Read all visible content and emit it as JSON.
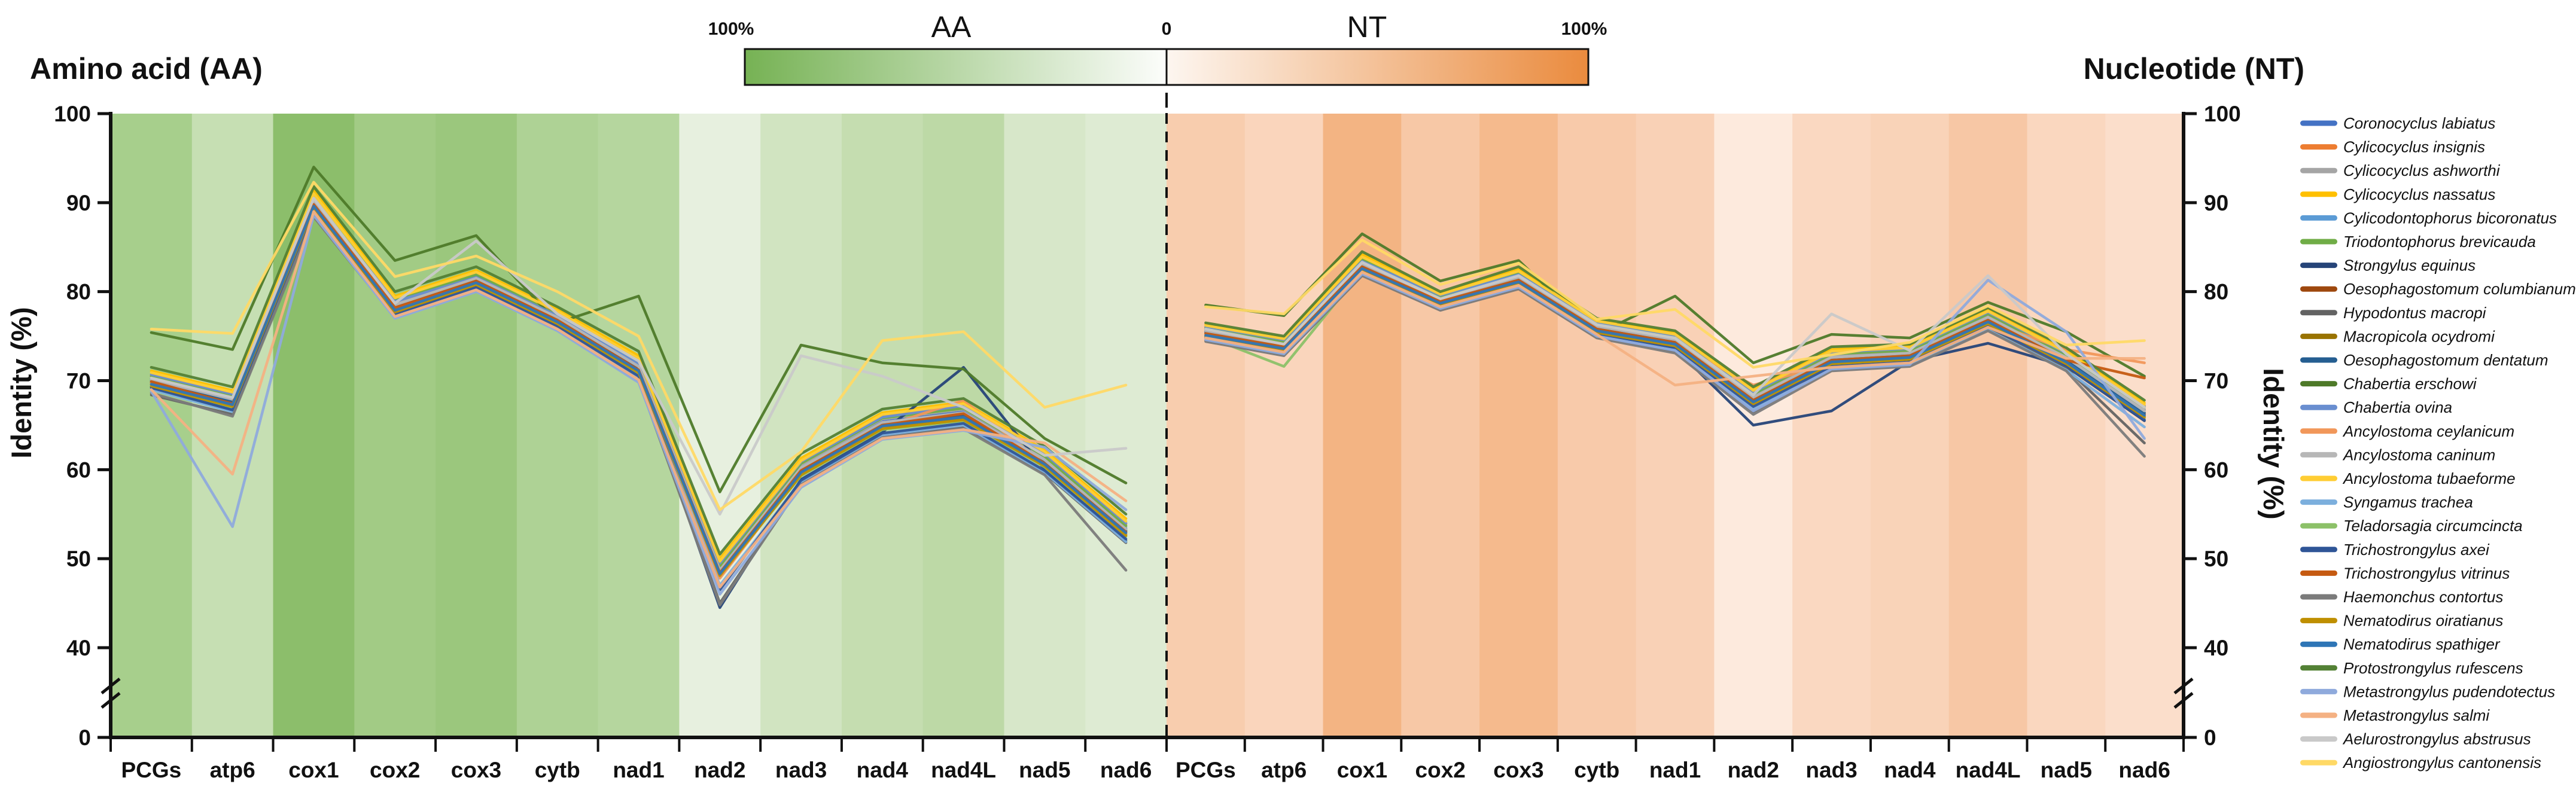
{
  "figure": {
    "aa_title": "Amino acid (AA)",
    "nt_title": "Nucleotide (NT)",
    "y_axis_label": "Identity (%)",
    "scale_legend": {
      "left_label": "100%",
      "aa_label": "AA",
      "zero_label": "0",
      "nt_label": "NT",
      "right_label": "100%",
      "green_color": "#76b254",
      "orange_color": "#ea8b3e"
    }
  },
  "chart_data": {
    "type": "line",
    "categories": [
      "PCGs",
      "atp6",
      "cox1",
      "cox2",
      "cox3",
      "cytb",
      "nad1",
      "nad2",
      "nad3",
      "nad4",
      "nad4L",
      "nad5",
      "nad6"
    ],
    "y_ticks": [
      100,
      90,
      80,
      70,
      60,
      50,
      40,
      0
    ],
    "y_axis_label": "Identity (%)",
    "axis_break": true,
    "grid": false,
    "legend_position": "right",
    "panels": {
      "aa": {
        "title": "Amino acid (AA)",
        "band_colors": [
          "#a7cf8c",
          "#c6dfb3",
          "#8cbe6b",
          "#a2cb85",
          "#9bc77d",
          "#aed295",
          "#b5d69e",
          "#e7f0df",
          "#d1e4c1",
          "#c5ddb0",
          "#bdd9a6",
          "#d7e7c9",
          "#deebd3"
        ]
      },
      "nt": {
        "title": "Nucleotide (NT)",
        "band_colors": [
          "#f8cdae",
          "#fad5bc",
          "#f3b483",
          "#f7c8a6",
          "#f5ba8d",
          "#f8caaa",
          "#f9d1b6",
          "#fdeadd",
          "#fad8c1",
          "#f9d3b8",
          "#f7c7a5",
          "#fad7bf",
          "#fbdecb"
        ]
      }
    },
    "series": [
      {
        "name": "Coronocyclus labiatus",
        "color": "#4472C4",
        "aa": [
          70.2,
          68.0,
          90.3,
          78.8,
          81.8,
          77.2,
          71.8,
          48.9,
          60.3,
          65.4,
          66.5,
          61.2,
          53.4
        ],
        "nt": [
          75.7,
          74.2,
          83.2,
          79.2,
          81.7,
          76.2,
          74.7,
          68.2,
          72.7,
          73.2,
          77.2,
          72.7,
          66.7
        ]
      },
      {
        "name": "Cylicocyclus insignis",
        "color": "#ED7D31",
        "aa": [
          70.6,
          68.4,
          90.0,
          79.2,
          81.4,
          77.6,
          72.3,
          49.4,
          60.8,
          66.0,
          67.0,
          61.7,
          53.9
        ],
        "nt": [
          76.0,
          74.5,
          83.5,
          79.5,
          82.0,
          76.5,
          75.0,
          68.6,
          73.1,
          73.5,
          77.6,
          73.0,
          67.1
        ]
      },
      {
        "name": "Cylicocyclus ashworthi",
        "color": "#A5A5A5",
        "aa": [
          70.4,
          68.2,
          90.6,
          78.6,
          82.1,
          77.0,
          72.0,
          49.0,
          60.5,
          65.7,
          66.8,
          61.4,
          53.6
        ],
        "nt": [
          75.8,
          74.3,
          83.8,
          79.3,
          82.2,
          76.3,
          74.8,
          68.3,
          72.8,
          73.3,
          77.3,
          72.8,
          66.8
        ]
      },
      {
        "name": "Cylicocyclus nassatus",
        "color": "#FFC000",
        "aa": [
          71.1,
          68.9,
          91.5,
          79.5,
          82.4,
          78.0,
          72.8,
          50.0,
          61.3,
          66.4,
          67.6,
          62.2,
          54.5
        ],
        "nt": [
          76.3,
          74.8,
          84.2,
          79.8,
          82.5,
          76.8,
          75.4,
          69.0,
          73.5,
          73.9,
          78.0,
          73.4,
          67.5
        ]
      },
      {
        "name": "Cylicodontophorus bicoronatus",
        "color": "#5B9BD5",
        "aa": [
          69.9,
          67.6,
          89.8,
          78.3,
          81.2,
          76.8,
          71.4,
          48.5,
          60.0,
          65.1,
          66.1,
          60.9,
          53.1
        ],
        "nt": [
          75.4,
          73.8,
          82.8,
          78.9,
          81.3,
          75.8,
          74.3,
          67.8,
          72.3,
          72.8,
          76.8,
          72.3,
          66.3
        ]
      },
      {
        "name": "Triodontophorus brevicauda",
        "color": "#70AD47",
        "aa": [
          70.5,
          68.3,
          90.4,
          79.0,
          81.9,
          77.4,
          72.1,
          49.2,
          60.7,
          65.8,
          66.9,
          61.5,
          53.7
        ],
        "nt": [
          75.9,
          74.4,
          83.6,
          79.4,
          82.1,
          76.4,
          74.9,
          68.5,
          73.0,
          73.4,
          77.5,
          72.9,
          67.0
        ]
      },
      {
        "name": "Strongylus equinus",
        "color": "#264478",
        "aa": [
          69.3,
          66.8,
          89.3,
          77.6,
          80.6,
          76.2,
          70.6,
          44.5,
          58.9,
          64.2,
          71.5,
          60.0,
          52.0
        ],
        "nt": [
          74.8,
          73.2,
          82.2,
          78.3,
          80.7,
          75.2,
          73.6,
          65.0,
          66.6,
          72.2,
          74.2,
          71.6,
          65.5
        ]
      },
      {
        "name": "Oesophagostomum columbianum",
        "color": "#9E480E",
        "aa": [
          69.8,
          67.5,
          89.7,
          78.2,
          81.1,
          76.7,
          71.3,
          48.3,
          59.8,
          65.0,
          66.0,
          60.8,
          53.0
        ],
        "nt": [
          75.3,
          73.7,
          82.7,
          78.8,
          81.2,
          75.7,
          74.2,
          67.7,
          72.2,
          72.7,
          76.7,
          72.2,
          66.2
        ]
      },
      {
        "name": "Hypodontus macropi",
        "color": "#636363",
        "aa": [
          68.4,
          66.2,
          88.8,
          77.3,
          80.3,
          75.9,
          70.3,
          45.0,
          58.5,
          63.8,
          64.8,
          59.6,
          51.8
        ],
        "nt": [
          74.5,
          72.9,
          81.9,
          78.0,
          80.4,
          74.9,
          73.3,
          66.5,
          71.4,
          71.9,
          75.9,
          71.4,
          63.0
        ]
      },
      {
        "name": "Macropicola ocydromi",
        "color": "#997300",
        "aa": [
          69.6,
          67.3,
          89.5,
          78.0,
          80.9,
          76.5,
          71.0,
          48.0,
          59.5,
          64.7,
          65.8,
          60.5,
          52.7
        ],
        "nt": [
          75.1,
          73.5,
          82.5,
          78.6,
          81.0,
          75.5,
          74.0,
          67.5,
          72.0,
          72.5,
          76.5,
          72.0,
          66.0
        ]
      },
      {
        "name": "Oesophagostomum dentatum",
        "color": "#255E91",
        "aa": [
          70.0,
          67.7,
          89.9,
          78.4,
          81.3,
          76.9,
          71.5,
          48.6,
          60.1,
          65.2,
          66.2,
          61.0,
          53.2
        ],
        "nt": [
          75.5,
          73.9,
          82.9,
          79.0,
          81.4,
          75.9,
          74.4,
          67.9,
          72.4,
          72.9,
          76.9,
          72.4,
          66.4
        ]
      },
      {
        "name": "Chabertia erschowi",
        "color": "#4E7A29",
        "aa": [
          75.4,
          73.5,
          94.0,
          83.5,
          86.3,
          76.5,
          79.5,
          57.5,
          74.0,
          72.0,
          71.3,
          63.5,
          58.5
        ],
        "nt": [
          78.5,
          77.3,
          86.5,
          81.2,
          83.5,
          75.2,
          79.5,
          72.0,
          75.2,
          74.8,
          78.8,
          75.5,
          70.5
        ]
      },
      {
        "name": "Chabertia ovina",
        "color": "#698ED0",
        "aa": [
          70.7,
          68.5,
          90.2,
          78.9,
          81.6,
          77.3,
          71.9,
          49.5,
          60.9,
          65.9,
          67.2,
          61.8,
          54.0
        ],
        "nt": [
          76.1,
          74.6,
          83.4,
          79.6,
          81.9,
          76.6,
          75.1,
          68.7,
          73.2,
          73.6,
          77.7,
          73.1,
          67.2
        ]
      },
      {
        "name": "Ancylostoma ceylanicum",
        "color": "#F1975A",
        "aa": [
          69.7,
          67.2,
          89.6,
          78.1,
          81.0,
          76.6,
          71.1,
          47.8,
          59.6,
          64.8,
          67.8,
          60.6,
          52.8
        ],
        "nt": [
          75.2,
          73.6,
          82.6,
          78.7,
          81.1,
          75.6,
          74.1,
          69.5,
          71.9,
          72.6,
          76.6,
          73.5,
          72.0
        ]
      },
      {
        "name": "Ancylostoma caninum",
        "color": "#B7B7B7",
        "aa": [
          70.1,
          67.9,
          90.1,
          78.5,
          81.5,
          77.1,
          71.6,
          48.7,
          60.2,
          65.3,
          66.4,
          61.1,
          53.3
        ],
        "nt": [
          75.6,
          74.0,
          83.1,
          79.1,
          81.6,
          76.1,
          74.6,
          68.1,
          72.6,
          73.1,
          77.1,
          72.6,
          66.6
        ]
      },
      {
        "name": "Ancylostoma tubaeforme",
        "color": "#FFCD33",
        "aa": [
          70.9,
          68.7,
          91.0,
          79.3,
          82.2,
          77.8,
          72.5,
          49.7,
          61.0,
          66.2,
          67.4,
          62.0,
          54.2
        ],
        "nt": [
          76.2,
          74.7,
          83.9,
          79.7,
          82.3,
          76.7,
          75.2,
          68.9,
          73.3,
          73.7,
          77.8,
          73.2,
          67.3
        ]
      },
      {
        "name": "Syngamus trachea",
        "color": "#7CAFDD",
        "aa": [
          69.0,
          66.5,
          89.1,
          77.4,
          80.4,
          76.0,
          70.4,
          47.0,
          58.6,
          63.9,
          65.0,
          59.7,
          51.9
        ],
        "nt": [
          74.7,
          73.1,
          82.1,
          78.2,
          80.6,
          75.1,
          73.5,
          66.8,
          71.2,
          71.7,
          75.7,
          71.2,
          64.8
        ]
      },
      {
        "name": "Teladorsagia circumcincta",
        "color": "#8CC168",
        "aa": [
          69.5,
          67.0,
          89.4,
          77.8,
          80.7,
          76.3,
          70.8,
          48.2,
          59.3,
          64.5,
          65.5,
          60.3,
          52.5
        ],
        "nt": [
          75.0,
          71.6,
          82.4,
          78.5,
          80.9,
          75.4,
          73.9,
          67.3,
          71.8,
          72.4,
          76.4,
          71.9,
          65.8
        ]
      },
      {
        "name": "Trichostrongylus axei",
        "color": "#2F5597",
        "aa": [
          69.2,
          66.7,
          89.2,
          77.5,
          80.5,
          76.1,
          70.5,
          46.5,
          58.8,
          64.1,
          65.2,
          59.9,
          52.2
        ],
        "nt": [
          74.9,
          73.3,
          82.3,
          78.4,
          80.8,
          75.3,
          73.7,
          67.1,
          71.6,
          72.1,
          76.1,
          71.7,
          65.6
        ]
      },
      {
        "name": "Trichostrongylus vitrinus",
        "color": "#C55A11",
        "aa": [
          69.9,
          67.4,
          89.8,
          78.2,
          81.2,
          76.8,
          71.2,
          48.4,
          59.9,
          65.0,
          66.3,
          60.7,
          53.0
        ],
        "nt": [
          75.3,
          73.8,
          82.8,
          78.9,
          81.3,
          75.8,
          74.3,
          67.8,
          72.3,
          72.8,
          76.8,
          72.3,
          70.3
        ]
      },
      {
        "name": "Haemonchus contortus",
        "color": "#7B7B7B",
        "aa": [
          68.6,
          66.0,
          88.4,
          77.1,
          80.1,
          75.7,
          70.0,
          44.8,
          58.3,
          63.6,
          64.6,
          59.4,
          48.7
        ],
        "nt": [
          74.4,
          72.8,
          81.8,
          77.9,
          80.3,
          74.8,
          73.1,
          66.2,
          71.1,
          71.6,
          75.6,
          71.1,
          61.5
        ]
      },
      {
        "name": "Nematodirus oiratianus",
        "color": "#BF8F00",
        "aa": [
          69.4,
          67.1,
          89.4,
          77.7,
          80.8,
          76.4,
          70.9,
          48.1,
          59.4,
          64.6,
          65.6,
          60.4,
          52.6
        ],
        "nt": [
          75.0,
          73.4,
          82.4,
          78.5,
          80.9,
          75.4,
          73.9,
          67.4,
          71.9,
          72.4,
          76.4,
          71.9,
          65.9
        ]
      },
      {
        "name": "Nematodirus spathiger",
        "color": "#2E75B6",
        "aa": [
          69.6,
          67.3,
          89.6,
          77.9,
          81.0,
          76.6,
          71.1,
          48.3,
          59.7,
          64.9,
          65.9,
          60.6,
          52.9
        ],
        "nt": [
          75.1,
          73.6,
          82.6,
          78.7,
          81.1,
          75.6,
          74.1,
          67.6,
          72.1,
          72.6,
          76.6,
          72.1,
          66.1
        ]
      },
      {
        "name": "Protostrongylus rufescens",
        "color": "#538135",
        "aa": [
          71.5,
          69.3,
          91.8,
          80.0,
          82.8,
          78.3,
          73.3,
          50.5,
          61.8,
          66.8,
          68.0,
          62.6,
          55.0
        ],
        "nt": [
          76.5,
          75.0,
          84.5,
          80.0,
          82.8,
          77.0,
          75.6,
          69.3,
          73.8,
          74.1,
          78.2,
          73.7,
          67.8
        ]
      },
      {
        "name": "Metastrongylus pudendotectus",
        "color": "#8FAADC",
        "aa": [
          68.8,
          53.6,
          88.6,
          77.0,
          80.0,
          75.6,
          69.8,
          46.0,
          58.0,
          63.4,
          64.4,
          62.5,
          55.5
        ],
        "nt": [
          74.6,
          73.0,
          82.0,
          78.1,
          80.5,
          75.0,
          73.4,
          66.6,
          71.3,
          71.8,
          81.3,
          75.5,
          63.5
        ]
      },
      {
        "name": "Metastrongylus salmi",
        "color": "#F4B183",
        "aa": [
          69.0,
          59.5,
          89.0,
          77.2,
          80.2,
          75.8,
          70.1,
          46.8,
          58.2,
          63.5,
          64.5,
          63.0,
          56.5
        ],
        "nt": [
          74.8,
          73.2,
          82.2,
          78.3,
          80.7,
          75.2,
          69.5,
          70.5,
          71.5,
          72.0,
          76.0,
          72.5,
          72.5
        ]
      },
      {
        "name": "Aelurostrongylus abstrusus",
        "color": "#C9C9C9",
        "aa": [
          70.3,
          68.1,
          90.5,
          78.7,
          85.7,
          77.5,
          72.2,
          55.0,
          72.8,
          70.5,
          67.0,
          61.6,
          62.4
        ],
        "nt": [
          75.8,
          74.1,
          83.3,
          79.2,
          81.8,
          76.3,
          74.8,
          68.4,
          77.5,
          73.4,
          81.8,
          73.0,
          67.0
        ]
      },
      {
        "name": "Angiostrongylus cantonensis",
        "color": "#FFD966",
        "aa": [
          75.8,
          75.3,
          92.3,
          81.7,
          84.0,
          80.0,
          75.0,
          55.5,
          62.0,
          74.5,
          75.5,
          67.0,
          69.5
        ],
        "nt": [
          78.3,
          77.5,
          85.8,
          80.8,
          83.2,
          76.9,
          78.0,
          71.5,
          72.9,
          74.3,
          78.4,
          74.0,
          74.5
        ]
      }
    ]
  }
}
